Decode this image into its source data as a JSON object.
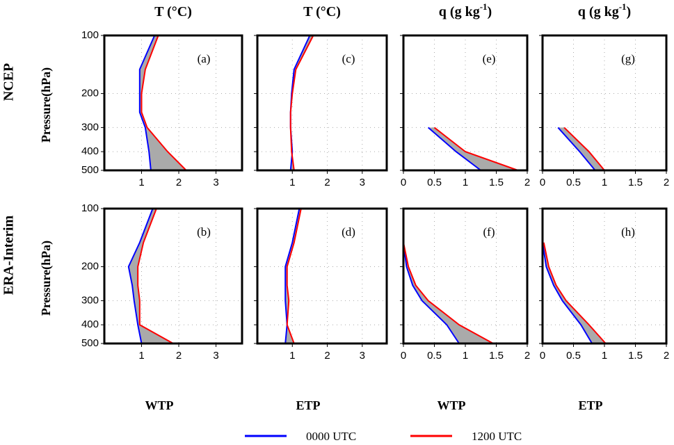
{
  "chart_data": [
    {
      "type": "line",
      "label": "(a)",
      "title": "T (°C)",
      "ylabel": "Pressure(hPa)",
      "row_label": "NCEP",
      "xlim": [
        0,
        3.7
      ],
      "xticks": [
        1,
        2,
        3
      ],
      "ylim": [
        100,
        500
      ],
      "ylog": true,
      "yinvert": true,
      "yticks": [
        100,
        200,
        300,
        400,
        500
      ],
      "y": [
        100,
        150,
        200,
        250,
        300,
        400,
        500
      ],
      "fill_between": "#aaaaaa",
      "series": [
        {
          "name": "0000 UTC",
          "color": "#0000ff",
          "values": [
            1.35,
            0.95,
            0.95,
            0.95,
            1.1,
            1.2,
            1.25
          ]
        },
        {
          "name": "1200 UTC",
          "color": "#ff0000",
          "values": [
            1.45,
            1.1,
            1.0,
            1.0,
            1.15,
            1.7,
            2.2
          ]
        }
      ]
    },
    {
      "type": "line",
      "label": "(c)",
      "title": "T (°C)",
      "xlim": [
        0,
        3.7
      ],
      "xticks": [
        1,
        2,
        3
      ],
      "ylim": [
        100,
        500
      ],
      "ylog": true,
      "yinvert": true,
      "yticks": [
        100,
        200,
        300,
        400,
        500
      ],
      "y": [
        100,
        150,
        200,
        250,
        300,
        400,
        500
      ],
      "fill_between": "#aaaaaa",
      "series": [
        {
          "name": "0000 UTC",
          "color": "#0000ff",
          "values": [
            1.5,
            1.05,
            0.98,
            0.95,
            0.95,
            1.0,
            0.95
          ]
        },
        {
          "name": "1200 UTC",
          "color": "#ff0000",
          "values": [
            1.6,
            1.1,
            1.0,
            0.95,
            0.95,
            0.98,
            1.05
          ]
        }
      ]
    },
    {
      "type": "line",
      "label": "(e)",
      "title": "q (g kg",
      "title_sup": "-1",
      "title_end": ")",
      "xlim": [
        0,
        2
      ],
      "xticks": [
        0,
        0.5,
        1,
        1.5,
        2
      ],
      "ylim": [
        100,
        500
      ],
      "ylog": true,
      "yinvert": true,
      "yticks": [
        100,
        200,
        300,
        400,
        500
      ],
      "y": [
        300,
        400,
        500
      ],
      "fill_between": "#aaaaaa",
      "series": [
        {
          "name": "0000 UTC",
          "color": "#0000ff",
          "values": [
            0.4,
            0.85,
            1.25
          ]
        },
        {
          "name": "1200 UTC",
          "color": "#ff0000",
          "values": [
            0.5,
            1.0,
            1.85
          ]
        }
      ]
    },
    {
      "type": "line",
      "label": "(g)",
      "title": "q (g kg",
      "title_sup": "-1",
      "title_end": ")",
      "xlim": [
        0,
        2
      ],
      "xticks": [
        0,
        0.5,
        1,
        1.5,
        2
      ],
      "ylim": [
        100,
        500
      ],
      "ylog": true,
      "yinvert": true,
      "yticks": [
        100,
        200,
        300,
        400,
        500
      ],
      "y": [
        300,
        400,
        500
      ],
      "fill_between": "#aaaaaa",
      "series": [
        {
          "name": "0000 UTC",
          "color": "#0000ff",
          "values": [
            0.25,
            0.6,
            0.85
          ]
        },
        {
          "name": "1200 UTC",
          "color": "#ff0000",
          "values": [
            0.35,
            0.75,
            1.0
          ]
        }
      ]
    },
    {
      "type": "line",
      "label": "(b)",
      "xlabel": "WTP",
      "ylabel": "Pressure(hPa)",
      "row_label": "ERA-Interim",
      "xlim": [
        0,
        3.7
      ],
      "xticks": [
        1,
        2,
        3
      ],
      "ylim": [
        100,
        500
      ],
      "ylog": true,
      "yinvert": true,
      "yticks": [
        100,
        200,
        300,
        400,
        500
      ],
      "y": [
        100,
        150,
        200,
        250,
        300,
        400,
        500
      ],
      "fill_between": "#aaaaaa",
      "series": [
        {
          "name": "0000 UTC",
          "color": "#0000ff",
          "values": [
            1.3,
            0.95,
            0.65,
            0.75,
            0.8,
            0.9,
            1.0
          ]
        },
        {
          "name": "1200 UTC",
          "color": "#ff0000",
          "values": [
            1.4,
            1.05,
            0.9,
            0.9,
            0.95,
            0.95,
            1.85
          ]
        }
      ]
    },
    {
      "type": "line",
      "label": "(d)",
      "xlabel": "ETP",
      "xlim": [
        0,
        3.7
      ],
      "xticks": [
        1,
        2,
        3
      ],
      "ylim": [
        100,
        500
      ],
      "ylog": true,
      "yinvert": true,
      "yticks": [
        100,
        200,
        300,
        400,
        500
      ],
      "y": [
        100,
        150,
        200,
        250,
        300,
        400,
        500
      ],
      "fill_between": "#aaaaaa",
      "series": [
        {
          "name": "0000 UTC",
          "color": "#0000ff",
          "values": [
            1.2,
            1.0,
            0.8,
            0.8,
            0.8,
            0.85,
            0.8
          ]
        },
        {
          "name": "1200 UTC",
          "color": "#ff0000",
          "values": [
            1.25,
            1.05,
            0.85,
            0.85,
            0.9,
            0.85,
            1.05
          ]
        }
      ]
    },
    {
      "type": "line",
      "label": "(f)",
      "xlabel": "WTP",
      "xlim": [
        0,
        2
      ],
      "xticks": [
        0,
        0.5,
        1,
        1.5,
        2
      ],
      "ylim": [
        100,
        500
      ],
      "ylog": true,
      "yinvert": true,
      "yticks": [
        100,
        200,
        300,
        400,
        500
      ],
      "y": [
        150,
        200,
        250,
        300,
        400,
        500
      ],
      "fill_between": "#aaaaaa",
      "series": [
        {
          "name": "0000 UTC",
          "color": "#0000ff",
          "values": [
            0.0,
            0.05,
            0.15,
            0.3,
            0.7,
            0.9
          ]
        },
        {
          "name": "1200 UTC",
          "color": "#ff0000",
          "values": [
            0.0,
            0.08,
            0.2,
            0.4,
            0.9,
            1.45
          ]
        }
      ]
    },
    {
      "type": "line",
      "label": "(h)",
      "xlabel": "ETP",
      "xlim": [
        0,
        2
      ],
      "xticks": [
        0,
        0.5,
        1,
        1.5,
        2
      ],
      "ylim": [
        100,
        500
      ],
      "ylog": true,
      "yinvert": true,
      "yticks": [
        100,
        200,
        300,
        400,
        500
      ],
      "y": [
        150,
        200,
        250,
        300,
        400,
        500
      ],
      "fill_between": "#aaaaaa",
      "series": [
        {
          "name": "0000 UTC",
          "color": "#0000ff",
          "values": [
            0.0,
            0.06,
            0.18,
            0.32,
            0.62,
            0.8
          ]
        },
        {
          "name": "1200 UTC",
          "color": "#ff0000",
          "values": [
            0.02,
            0.1,
            0.22,
            0.38,
            0.75,
            1.02
          ]
        }
      ]
    }
  ]
}
